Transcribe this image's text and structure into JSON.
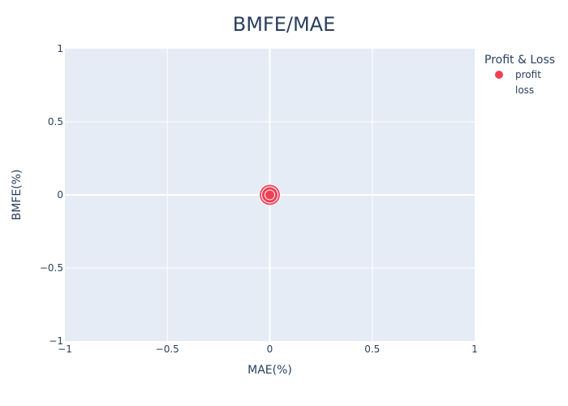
{
  "chart_data": {
    "type": "scatter",
    "title": "BMFE/MAE",
    "xlabel": "MAE(%)",
    "ylabel": "BMFE(%)",
    "xlim": [
      -1,
      1
    ],
    "ylim": [
      -1,
      1
    ],
    "x_ticks": [
      -1,
      -0.5,
      0,
      0.5,
      1
    ],
    "y_ticks": [
      -1,
      -0.5,
      0,
      0.5,
      1
    ],
    "x_tick_labels": [
      "−1",
      "−0.5",
      "0",
      "0.5",
      "1"
    ],
    "y_tick_labels": [
      "−1",
      "−0.5",
      "0",
      "0.5",
      "1"
    ],
    "grid": true,
    "legend": {
      "title": "Profit & Loss",
      "placement": "top-right",
      "entries": [
        {
          "name": "profit",
          "color": "#ef4055",
          "visible_marker": true
        },
        {
          "name": "loss",
          "color": "#ffffff",
          "visible_marker": false
        }
      ]
    },
    "series": [
      {
        "name": "profit",
        "color": "#ef4055",
        "points": [
          {
            "x": 0,
            "y": 0
          }
        ]
      },
      {
        "name": "loss",
        "color": "#ffffff",
        "points": []
      }
    ],
    "colors": {
      "plot_background": "#e5ecf6",
      "grid": "#ffffff",
      "text": "#2a3f5f",
      "marker_outline": "#ffffff"
    }
  }
}
